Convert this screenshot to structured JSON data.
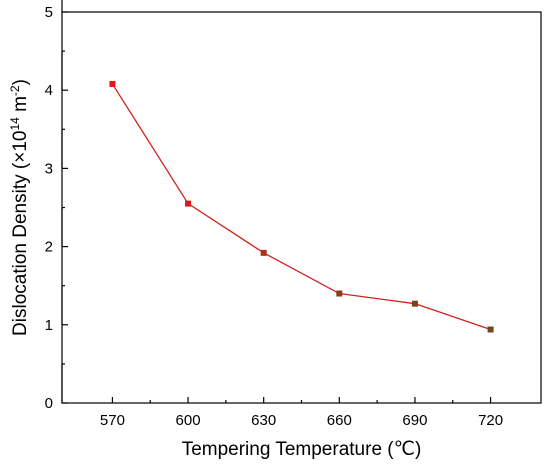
{
  "chart_data": {
    "type": "line",
    "title": "",
    "xlabel": "Tempering Temperature (℃)",
    "ylabel_main": "Dislocation Density (×10",
    "ylabel_sup1": "14",
    "ylabel_mid": " m",
    "ylabel_sup2": "-2",
    "ylabel_end": ")",
    "x": [
      570,
      600,
      630,
      660,
      690,
      720
    ],
    "xticks": [
      "570",
      "600",
      "630",
      "660",
      "690",
      "720"
    ],
    "xlim": [
      550,
      740
    ],
    "y": [
      4.08,
      2.55,
      1.92,
      1.4,
      1.27,
      0.94
    ],
    "yticks": [
      "0",
      "1",
      "2",
      "3",
      "4",
      "5"
    ],
    "ylim": [
      0,
      5
    ],
    "grid": false,
    "legend": "none",
    "line_color": "#d42020",
    "marker_colors": [
      "#e8141c",
      "#d21c1c",
      "#a8321c",
      "#8a3e1a",
      "#7a441a",
      "#70481a"
    ]
  }
}
